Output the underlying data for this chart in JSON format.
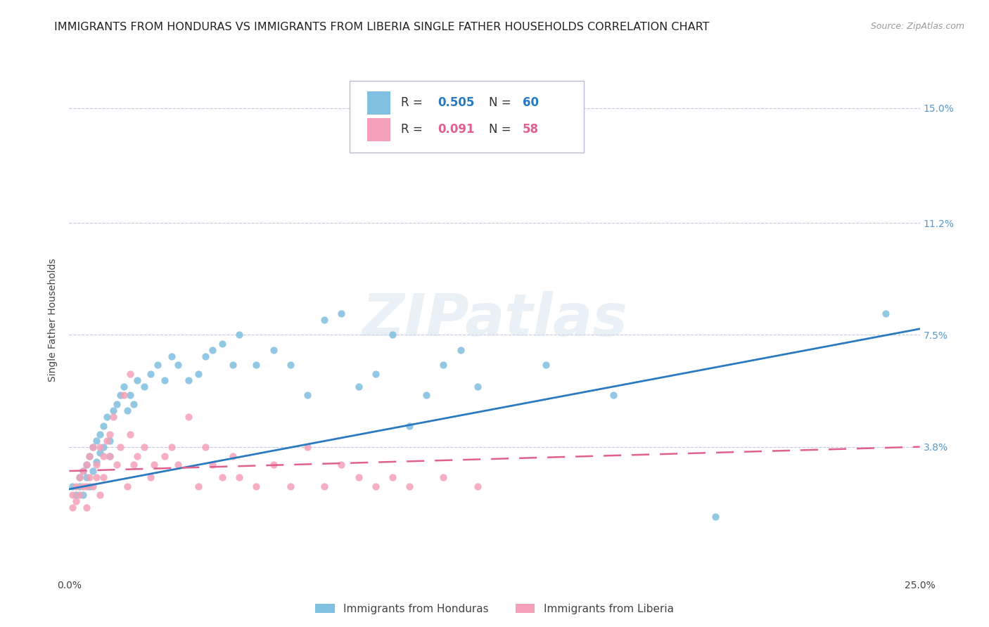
{
  "title": "IMMIGRANTS FROM HONDURAS VS IMMIGRANTS FROM LIBERIA SINGLE FATHER HOUSEHOLDS CORRELATION CHART",
  "source": "Source: ZipAtlas.com",
  "ylabel": "Single Father Households",
  "ytick_labels": [
    "15.0%",
    "11.2%",
    "7.5%",
    "3.8%"
  ],
  "ytick_values": [
    0.15,
    0.112,
    0.075,
    0.038
  ],
  "xlim": [
    0.0,
    0.25
  ],
  "ylim": [
    -0.005,
    0.165
  ],
  "legend_labels": [
    "Immigrants from Honduras",
    "Immigrants from Liberia"
  ],
  "r_honduras": 0.505,
  "n_honduras": 60,
  "r_liberia": 0.091,
  "n_liberia": 58,
  "color_honduras": "#7fbfdf",
  "color_liberia": "#f4a0b8",
  "trendline_honduras_color": "#2a7abf",
  "trendline_liberia_color": "#e06090",
  "background_color": "#ffffff",
  "grid_color": "#c8c8e0",
  "watermark": "ZIPatlas",
  "title_fontsize": 11.5,
  "source_fontsize": 9,
  "axis_label_fontsize": 10,
  "tick_fontsize": 10,
  "honduras_x": [
    0.001,
    0.002,
    0.003,
    0.003,
    0.004,
    0.004,
    0.005,
    0.005,
    0.006,
    0.006,
    0.007,
    0.007,
    0.008,
    0.008,
    0.009,
    0.009,
    0.01,
    0.01,
    0.011,
    0.012,
    0.012,
    0.013,
    0.014,
    0.015,
    0.016,
    0.017,
    0.018,
    0.019,
    0.02,
    0.022,
    0.024,
    0.026,
    0.028,
    0.03,
    0.032,
    0.035,
    0.038,
    0.04,
    0.042,
    0.045,
    0.048,
    0.05,
    0.055,
    0.06,
    0.065,
    0.07,
    0.075,
    0.08,
    0.085,
    0.09,
    0.095,
    0.1,
    0.105,
    0.11,
    0.115,
    0.12,
    0.14,
    0.16,
    0.19,
    0.24
  ],
  "honduras_y": [
    0.025,
    0.022,
    0.028,
    0.025,
    0.03,
    0.022,
    0.032,
    0.028,
    0.035,
    0.025,
    0.038,
    0.03,
    0.04,
    0.033,
    0.042,
    0.036,
    0.045,
    0.038,
    0.048,
    0.04,
    0.035,
    0.05,
    0.052,
    0.055,
    0.058,
    0.05,
    0.055,
    0.052,
    0.06,
    0.058,
    0.062,
    0.065,
    0.06,
    0.068,
    0.065,
    0.06,
    0.062,
    0.068,
    0.07,
    0.072,
    0.065,
    0.075,
    0.065,
    0.07,
    0.065,
    0.055,
    0.08,
    0.082,
    0.058,
    0.062,
    0.075,
    0.045,
    0.055,
    0.065,
    0.07,
    0.058,
    0.065,
    0.055,
    0.015,
    0.082
  ],
  "liberia_x": [
    0.001,
    0.001,
    0.002,
    0.002,
    0.003,
    0.003,
    0.004,
    0.004,
    0.005,
    0.005,
    0.005,
    0.006,
    0.006,
    0.007,
    0.007,
    0.008,
    0.008,
    0.009,
    0.009,
    0.01,
    0.01,
    0.011,
    0.012,
    0.012,
    0.013,
    0.014,
    0.015,
    0.016,
    0.017,
    0.018,
    0.018,
    0.019,
    0.02,
    0.022,
    0.024,
    0.025,
    0.028,
    0.03,
    0.032,
    0.035,
    0.038,
    0.04,
    0.042,
    0.045,
    0.048,
    0.05,
    0.055,
    0.06,
    0.065,
    0.07,
    0.075,
    0.08,
    0.085,
    0.09,
    0.095,
    0.1,
    0.11,
    0.12
  ],
  "liberia_y": [
    0.022,
    0.018,
    0.025,
    0.02,
    0.028,
    0.022,
    0.025,
    0.03,
    0.032,
    0.025,
    0.018,
    0.035,
    0.028,
    0.038,
    0.025,
    0.032,
    0.028,
    0.038,
    0.022,
    0.035,
    0.028,
    0.04,
    0.035,
    0.042,
    0.048,
    0.032,
    0.038,
    0.055,
    0.025,
    0.042,
    0.062,
    0.032,
    0.035,
    0.038,
    0.028,
    0.032,
    0.035,
    0.038,
    0.032,
    0.048,
    0.025,
    0.038,
    0.032,
    0.028,
    0.035,
    0.028,
    0.025,
    0.032,
    0.025,
    0.038,
    0.025,
    0.032,
    0.028,
    0.025,
    0.028,
    0.025,
    0.028,
    0.025
  ]
}
